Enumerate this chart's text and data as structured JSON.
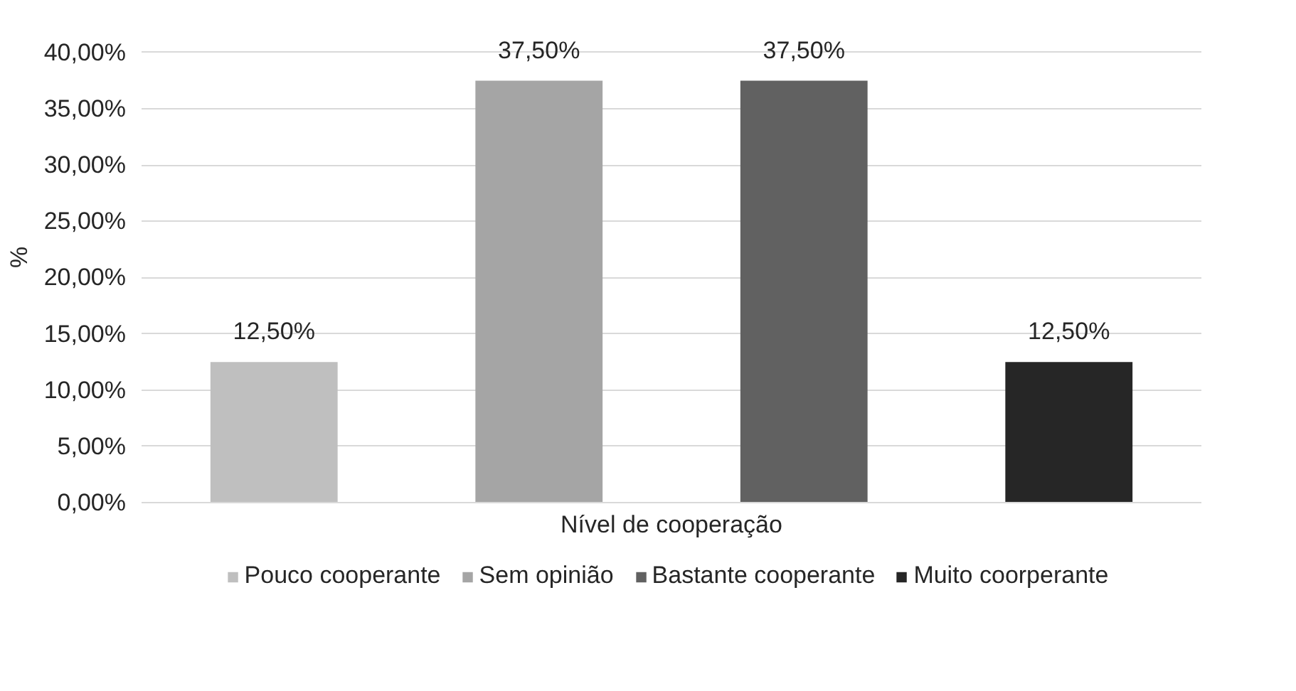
{
  "chart_data": {
    "type": "bar",
    "xlabel": "Nível de cooperação",
    "ylabel": "%",
    "categories": [
      null
    ],
    "series": [
      {
        "name": "Pouco cooperante",
        "color": "#bfbfbf",
        "values": [
          12.5
        ],
        "value_labels": [
          "12,50%"
        ]
      },
      {
        "name": "Sem opinião",
        "color": "#a5a5a5",
        "values": [
          37.5
        ],
        "value_labels": [
          "37,50%"
        ]
      },
      {
        "name": "Bastante cooperante",
        "color": "#616161",
        "values": [
          37.5
        ],
        "value_labels": [
          "37,50%"
        ]
      },
      {
        "name": "Muito coorperante",
        "color": "#262626",
        "values": [
          12.5
        ],
        "value_labels": [
          "12,50%"
        ]
      }
    ],
    "ylim": [
      0,
      40
    ],
    "yticks": [
      {
        "value": 0,
        "label": "0,00%"
      },
      {
        "value": 5,
        "label": "5,00%"
      },
      {
        "value": 10,
        "label": "10,00%"
      },
      {
        "value": 15,
        "label": "15,00%"
      },
      {
        "value": 20,
        "label": "20,00%"
      },
      {
        "value": 25,
        "label": "25,00%"
      },
      {
        "value": 30,
        "label": "30,00%"
      },
      {
        "value": 35,
        "label": "35,00%"
      },
      {
        "value": 40,
        "label": "40,00%"
      }
    ],
    "grid": "y",
    "legend": "bottom"
  }
}
